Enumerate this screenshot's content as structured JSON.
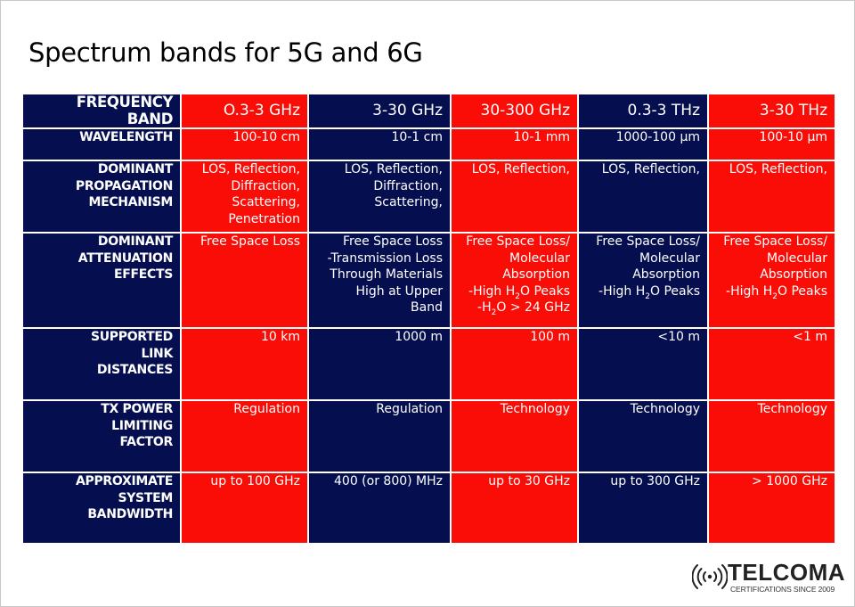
{
  "title": "Spectrum bands for 5G and 6G",
  "colors": {
    "navy": "#050f4f",
    "red": "#fa0c07",
    "text": "#ffffff"
  },
  "table": {
    "header": {
      "label": "FREQUENCY BAND",
      "bands": [
        "O.3-3 GHz",
        "3-30 GHz",
        "30-300 GHz",
        "0.3-3 THz",
        "3-30 THz"
      ]
    },
    "rows": [
      {
        "label_lines": [
          "WAVELENGTH"
        ],
        "cells": [
          [
            "100-10 cm"
          ],
          [
            "10-1 cm"
          ],
          [
            "10-1 mm"
          ],
          [
            "1000-100 µm"
          ],
          [
            "100-10 µm"
          ]
        ]
      },
      {
        "label_lines": [
          "DOMINANT",
          "PROPAGATION",
          "MECHANISM"
        ],
        "cells": [
          [
            "LOS, Reflection,",
            "Diffraction,",
            "Scattering,",
            "Penetration"
          ],
          [
            "LOS, Reflection,",
            "Diffraction,",
            "Scattering,"
          ],
          [
            "LOS, Reflection,"
          ],
          [
            "LOS, Reflection,"
          ],
          [
            "LOS, Reflection,"
          ]
        ]
      },
      {
        "label_lines": [
          "DOMINANT",
          "ATTENUATION",
          "EFFECTS"
        ],
        "cells": [
          [
            "Free Space Loss"
          ],
          [
            "Free Space Loss",
            "-Transmission Loss",
            "Through Materials",
            "High at Upper",
            "Band"
          ],
          [
            "Free Space Loss/",
            "Molecular",
            "Absorption",
            "-High H2O Peaks",
            "-H2O > 24 GHz"
          ],
          [
            "Free Space Loss/",
            "Molecular",
            "Absorption",
            "-High H2O Peaks"
          ],
          [
            "Free Space Loss/",
            "Molecular",
            "Absorption",
            "-High H2O Peaks"
          ]
        ]
      },
      {
        "label_lines": [
          "SUPPORTED",
          "LINK",
          "DISTANCES"
        ],
        "cells": [
          [
            "10 km"
          ],
          [
            "1000 m"
          ],
          [
            "100 m"
          ],
          [
            "<10 m"
          ],
          [
            "<1 m"
          ]
        ]
      },
      {
        "label_lines": [
          "TX POWER",
          "LIMITING",
          "FACTOR"
        ],
        "cells": [
          [
            "Regulation"
          ],
          [
            "Regulation"
          ],
          [
            "Technology"
          ],
          [
            "Technology"
          ],
          [
            "Technology"
          ]
        ]
      },
      {
        "label_lines": [
          "APPROXIMATE",
          "SYSTEM",
          "BANDWIDTH"
        ],
        "cells": [
          [
            "up to 100 GHz"
          ],
          [
            "400 (or 800) MHz"
          ],
          [
            "up to 30 GHz"
          ],
          [
            "up to 300 GHz"
          ],
          [
            "> 1000 GHz"
          ]
        ]
      }
    ]
  },
  "logo": {
    "icon": "wireless-signal-icon",
    "brand": "TELCOMA",
    "tagline": "CERTIFICATIONS SINCE 2009"
  }
}
